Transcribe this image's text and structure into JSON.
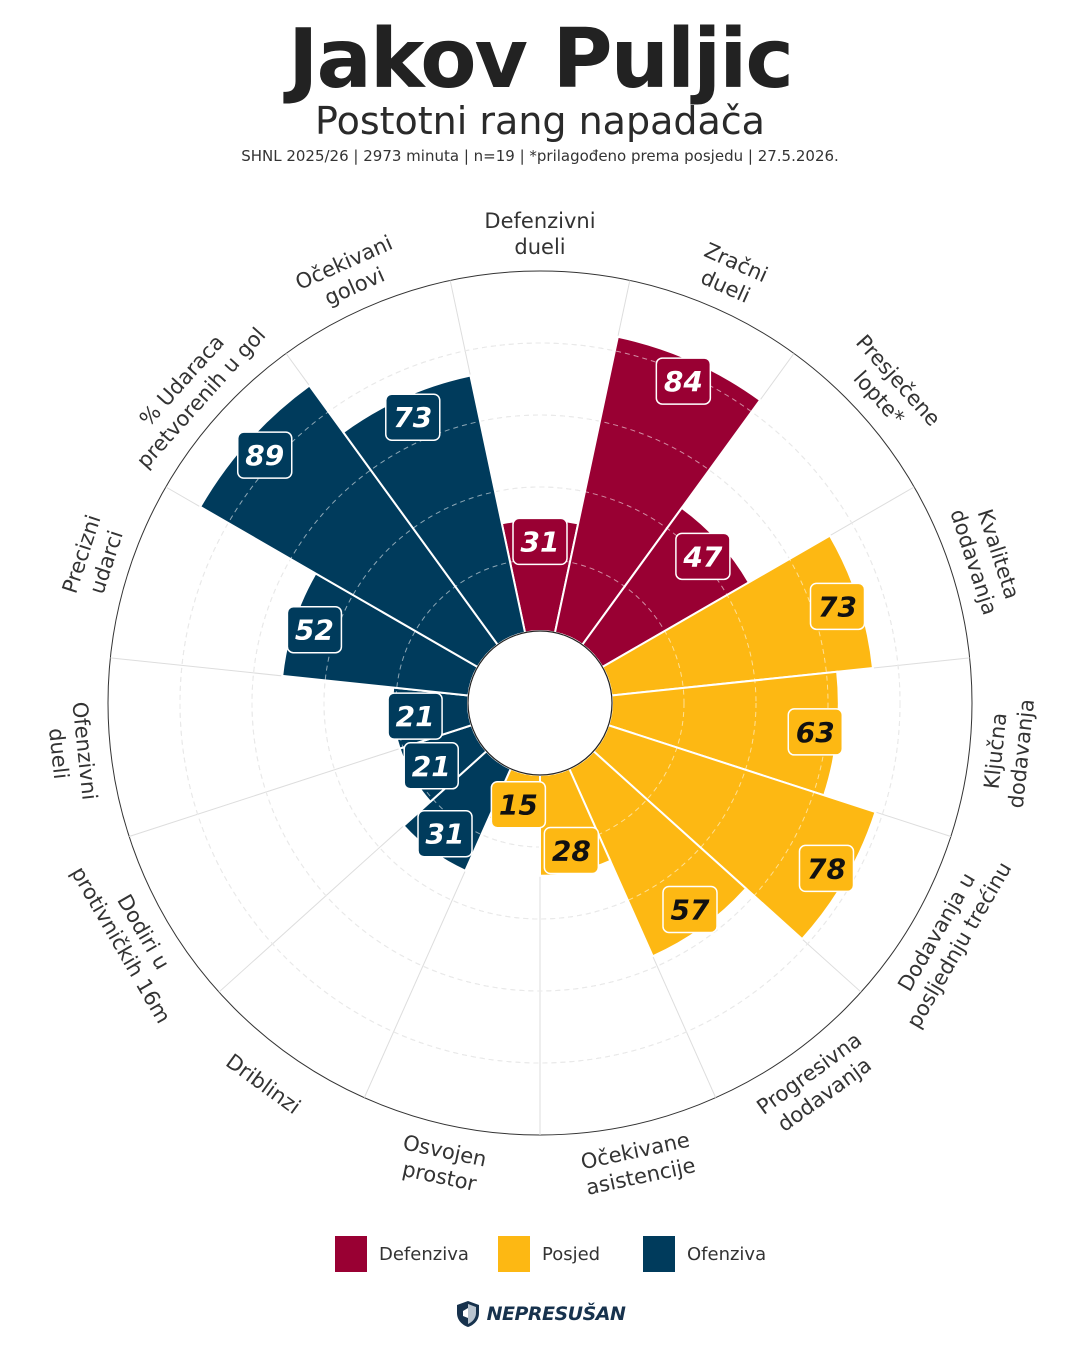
{
  "header": {
    "title": "Jakov Puljic",
    "subtitle": "Postotni rang napadača",
    "meta": "SHNL 2025/26 | 2973 minuta | n=19 | *prilagođeno prema posjedu | 27.5.2026."
  },
  "colors": {
    "defenziva": "#990033",
    "posjed": "#FDB813",
    "ofenziva": "#003B5C"
  },
  "chart_data": {
    "type": "polar-bar",
    "scale": [
      0,
      100
    ],
    "series": [
      {
        "name": "Defenziva",
        "color": "#990033"
      },
      {
        "name": "Posjed",
        "color": "#FDB813"
      },
      {
        "name": "Ofenziva",
        "color": "#003B5C"
      }
    ],
    "metrics": [
      {
        "label": [
          "Defenzivni",
          "dueli"
        ],
        "value": 31,
        "group": "Defenziva"
      },
      {
        "label": [
          "Zračni",
          "dueli"
        ],
        "value": 84,
        "group": "Defenziva"
      },
      {
        "label": [
          "Presječene",
          "lopte*"
        ],
        "value": 47,
        "group": "Defenziva"
      },
      {
        "label": [
          "Kvaliteta",
          "dodavanja"
        ],
        "value": 73,
        "group": "Posjed"
      },
      {
        "label": [
          "Ključna",
          "dodavanja"
        ],
        "value": 63,
        "group": "Posjed"
      },
      {
        "label": [
          "Dodavanja u",
          "posljednju trećinu"
        ],
        "value": 78,
        "group": "Posjed"
      },
      {
        "label": [
          "Progresivna",
          "dodavanja"
        ],
        "value": 57,
        "group": "Posjed"
      },
      {
        "label": [
          "Očekivane",
          "asistencije"
        ],
        "value": 28,
        "group": "Posjed"
      },
      {
        "label": [
          "Osvojen",
          "prostor"
        ],
        "value": 15,
        "group": "Posjed"
      },
      {
        "label": [
          "Driblinzi"
        ],
        "value": 31,
        "group": "Ofenziva"
      },
      {
        "label": [
          "Dodiri u",
          "protivničkih 16m"
        ],
        "value": 21,
        "group": "Ofenziva"
      },
      {
        "label": [
          "Ofenzivni",
          "dueli"
        ],
        "value": 21,
        "group": "Ofenziva"
      },
      {
        "label": [
          "Precizni",
          "udarci"
        ],
        "value": 52,
        "group": "Ofenziva"
      },
      {
        "label": [
          "% Udaraca",
          "pretvorenih u gol"
        ],
        "value": 89,
        "group": "Ofenziva"
      },
      {
        "label": [
          "Očekivani",
          "golovi"
        ],
        "value": 73,
        "group": "Ofenziva"
      }
    ]
  },
  "legend": [
    {
      "label": "Defenziva",
      "color": "#990033"
    },
    {
      "label": "Posjed",
      "color": "#FDB813"
    },
    {
      "label": "Ofenziva",
      "color": "#003B5C"
    }
  ],
  "brand": {
    "name": "NEPRESUŠAN",
    "logo_icon": "shield-icon"
  }
}
